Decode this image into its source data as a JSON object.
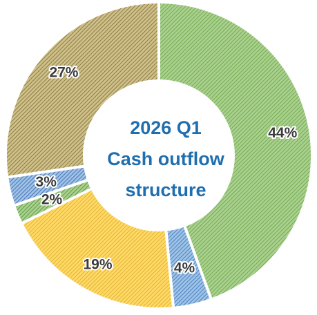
{
  "chart_data": {
    "type": "donut",
    "title": [
      "2026 Q1",
      "Cash outflow",
      "structure"
    ],
    "values": [
      44,
      4,
      19,
      2,
      3,
      27
    ],
    "value_labels": [
      "44%",
      "4%",
      "19%",
      "2%",
      "3%",
      "27%"
    ],
    "colors": [
      "#a9d18e",
      "#9dc3e6",
      "#ffd966",
      "#a9d18e",
      "#9dc3e6",
      "#cfc08a"
    ],
    "hatch_colors": [
      "#6a9f45",
      "#3d6fb5",
      "#d9a92a",
      "#4f8a35",
      "#3a5da8",
      "#7a6b35"
    ]
  }
}
